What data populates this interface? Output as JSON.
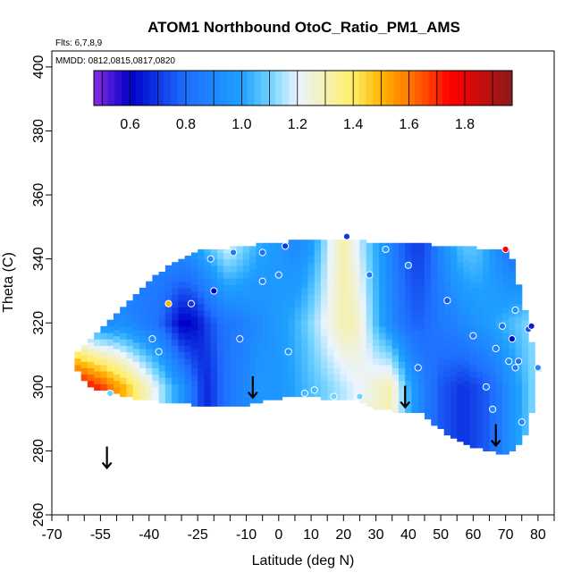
{
  "chart_data": {
    "type": "heatmap",
    "title": "ATOM1 Northbound OtoC_Ratio_PM1_AMS",
    "annotations": [
      "Flts: 6,7,8,9",
      "MMDD: 0812,0815,0817,0820"
    ],
    "xlabel": "Latitude (deg N)",
    "ylabel": "Theta (C)",
    "xlim": [
      -70,
      85
    ],
    "ylim": [
      260,
      405
    ],
    "x_ticks": [
      -70,
      -55,
      -40,
      -25,
      -10,
      0,
      10,
      20,
      30,
      40,
      50,
      60,
      70,
      80
    ],
    "x_tick_labels": [
      "-70",
      "-55",
      "-40",
      "-25",
      "-10",
      "0",
      "10",
      "20",
      "30",
      "40",
      "50",
      "60",
      "70",
      "80"
    ],
    "x_minor_ticks": [
      -65,
      -60,
      -50,
      -45,
      -35,
      -30,
      -20,
      -15,
      -5,
      5,
      15,
      25,
      35,
      45,
      55,
      65,
      75,
      85
    ],
    "y_ticks": [
      260,
      280,
      300,
      320,
      340,
      360,
      380,
      400
    ],
    "y_tick_labels": [
      "260",
      "280",
      "300",
      "320",
      "340",
      "360",
      "380",
      "400"
    ],
    "colorbar": {
      "range": [
        0.47,
        1.97
      ],
      "ticks": [
        0.6,
        0.8,
        1.0,
        1.2,
        1.4,
        1.6,
        1.8
      ],
      "tick_labels": [
        "0.6",
        "0.8",
        "1.0",
        "1.2",
        "1.4",
        "1.6",
        "1.8"
      ],
      "stops": [
        {
          "v": 0.47,
          "color": "#8a2be2"
        },
        {
          "v": 0.6,
          "color": "#0000c8"
        },
        {
          "v": 0.8,
          "color": "#1f6fff"
        },
        {
          "v": 1.0,
          "color": "#1ea0ff"
        },
        {
          "v": 1.1,
          "color": "#6fd2ff"
        },
        {
          "v": 1.2,
          "color": "#eaf4ff"
        },
        {
          "v": 1.4,
          "color": "#ffee66"
        },
        {
          "v": 1.5,
          "color": "#ffb400"
        },
        {
          "v": 1.6,
          "color": "#ff7800"
        },
        {
          "v": 1.75,
          "color": "#ff0000"
        },
        {
          "v": 1.97,
          "color": "#8b1a1a"
        }
      ]
    },
    "grid": false,
    "field": {
      "lat": [
        -64,
        -62,
        -60,
        -58,
        -56,
        -54,
        -52,
        -50,
        -48,
        -46,
        -44,
        -42,
        -40,
        -38,
        -36,
        -34,
        -32,
        -30,
        -28,
        -26,
        -24,
        -22,
        -20,
        -18,
        -16,
        -14,
        -12,
        -10,
        -8,
        -6,
        -4,
        -2,
        0,
        2,
        4,
        6,
        8,
        10,
        12,
        14,
        16,
        18,
        20,
        22,
        24,
        26,
        28,
        30,
        32,
        34,
        36,
        38,
        40,
        42,
        44,
        46,
        48,
        50,
        52,
        54,
        56,
        58,
        60,
        62,
        64,
        66,
        68,
        70,
        72,
        74,
        76,
        78,
        80
      ],
      "bottom": [
        309,
        305,
        302,
        300,
        299,
        299,
        299,
        298,
        297,
        297,
        296,
        296,
        296,
        296,
        295,
        295,
        295,
        295,
        295,
        294,
        294,
        294,
        294,
        294,
        294,
        294,
        294,
        294,
        295,
        295,
        296,
        296,
        296,
        297,
        297,
        297,
        297,
        297,
        297,
        296,
        296,
        296,
        296,
        296,
        296,
        295,
        294,
        293,
        293,
        293,
        292,
        292,
        292,
        292,
        292,
        290,
        288,
        287,
        285,
        284,
        283,
        282,
        281,
        281,
        280,
        280,
        279,
        279,
        280,
        282,
        285,
        292,
        305
      ],
      "top": [
        309,
        311,
        313,
        315,
        317,
        319,
        321,
        323,
        325,
        327,
        329,
        331,
        333,
        335,
        336,
        338,
        339,
        340,
        341,
        342,
        343,
        343,
        343,
        343,
        343,
        344,
        344,
        344,
        344,
        345,
        345,
        345,
        345,
        345,
        346,
        346,
        346,
        346,
        346,
        346,
        346,
        346,
        346,
        346,
        346,
        346,
        345,
        345,
        345,
        345,
        345,
        345,
        345,
        345,
        345,
        345,
        344,
        344,
        344,
        344,
        344,
        344,
        344,
        343,
        343,
        343,
        343,
        343,
        340,
        332,
        324,
        314,
        306
      ],
      "lat_step": 2,
      "theta_step": 2,
      "v": [
        [
          1.85,
          1.82,
          1.78,
          1.74,
          1.7,
          1.66,
          1.6,
          1.55,
          1.5,
          1.44,
          1.38,
          1.32,
          1.26,
          1.2,
          1.14,
          1.08,
          1.02,
          0.96,
          0.88,
          0.8,
          0.72,
          0.68,
          0.72,
          0.78,
          0.82,
          0.86,
          0.88,
          0.9,
          0.94,
          0.96,
          0.96,
          0.96,
          0.96,
          0.98,
          1.0,
          1.02,
          1.04,
          1.06,
          1.08,
          1.1,
          1.12,
          1.14,
          1.16,
          1.18,
          1.2,
          1.22,
          1.24,
          1.26,
          1.28,
          1.3,
          1.24,
          1.14,
          1.04,
          0.96,
          0.9,
          0.84,
          0.8,
          0.76,
          0.74,
          0.72,
          0.7,
          0.7,
          0.72,
          0.74,
          0.76,
          0.8,
          0.84,
          0.9,
          0.95,
          1.0,
          1.05,
          1.1,
          1.15
        ],
        [
          1.0,
          0.98,
          0.96,
          0.94,
          0.92,
          0.92,
          0.92,
          0.92,
          0.92,
          0.9,
          0.88,
          0.86,
          0.84,
          0.82,
          0.78,
          0.72,
          0.66,
          0.6,
          0.6,
          0.62,
          0.66,
          0.72,
          0.76,
          0.8,
          0.82,
          0.84,
          0.86,
          0.88,
          0.9,
          0.92,
          0.94,
          0.96,
          0.98,
          1.0,
          1.02,
          1.05,
          1.08,
          1.12,
          1.16,
          1.2,
          1.24,
          1.27,
          1.3,
          1.3,
          1.28,
          1.22,
          1.14,
          1.06,
          1.0,
          0.94,
          0.88,
          0.84,
          0.8,
          0.78,
          0.78,
          0.8,
          0.82,
          0.84,
          0.86,
          0.88,
          0.9,
          0.92,
          0.94,
          0.96,
          0.98,
          1.0,
          1.02,
          1.04,
          1.06,
          1.08,
          1.1,
          1.12,
          1.14
        ],
        [
          0.9,
          0.9,
          0.9,
          0.9,
          0.9,
          0.9,
          0.88,
          0.86,
          0.84,
          0.82,
          0.82,
          0.84,
          0.86,
          0.88,
          0.9,
          0.92,
          0.94,
          0.96,
          0.98,
          1.0,
          1.04,
          1.08,
          1.12,
          1.16,
          1.2,
          1.18,
          1.14,
          1.1,
          1.06,
          1.02,
          1.0,
          0.98,
          0.96,
          0.94,
          0.92,
          0.92,
          0.94,
          0.98,
          1.04,
          1.12,
          1.2,
          1.26,
          1.3,
          1.26,
          1.2,
          1.14,
          1.08,
          1.02,
          0.96,
          0.9,
          0.84,
          0.78,
          0.74,
          0.72,
          0.72,
          0.76,
          0.82,
          0.9,
          0.96,
          1.02,
          1.06,
          1.08,
          1.08,
          1.06,
          1.02,
          0.96,
          0.9,
          0.84,
          0.8,
          0.78,
          0.82,
          0.9,
          1.0
        ]
      ],
      "v_theta": [
        300,
        320,
        345
      ]
    },
    "points": [
      {
        "lat": -52,
        "theta": 298,
        "v": 1.1
      },
      {
        "lat": -39,
        "theta": 315,
        "v": 0.9
      },
      {
        "lat": -37,
        "theta": 311,
        "v": 0.95
      },
      {
        "lat": -34,
        "theta": 326,
        "v": 1.5
      },
      {
        "lat": -27,
        "theta": 326,
        "v": 0.7
      },
      {
        "lat": -21,
        "theta": 340,
        "v": 0.9
      },
      {
        "lat": -20,
        "theta": 330,
        "v": 0.6
      },
      {
        "lat": -14,
        "theta": 342,
        "v": 0.85
      },
      {
        "lat": -12,
        "theta": 315,
        "v": 0.8
      },
      {
        "lat": -5,
        "theta": 333,
        "v": 0.85
      },
      {
        "lat": -5,
        "theta": 342,
        "v": 0.8
      },
      {
        "lat": 0,
        "theta": 335,
        "v": 0.9
      },
      {
        "lat": 2,
        "theta": 344,
        "v": 0.7
      },
      {
        "lat": 3,
        "theta": 311,
        "v": 0.95
      },
      {
        "lat": 8,
        "theta": 298,
        "v": 1.05
      },
      {
        "lat": 11,
        "theta": 299,
        "v": 1.05
      },
      {
        "lat": 17,
        "theta": 297,
        "v": 1.1
      },
      {
        "lat": 21,
        "theta": 347,
        "v": 0.7
      },
      {
        "lat": 25,
        "theta": 297,
        "v": 1.1
      },
      {
        "lat": 28,
        "theta": 335,
        "v": 0.85
      },
      {
        "lat": 33,
        "theta": 343,
        "v": 1.0
      },
      {
        "lat": 40,
        "theta": 338,
        "v": 0.9
      },
      {
        "lat": 43,
        "theta": 306,
        "v": 0.8
      },
      {
        "lat": 52,
        "theta": 327,
        "v": 0.75
      },
      {
        "lat": 60,
        "theta": 316,
        "v": 0.85
      },
      {
        "lat": 64,
        "theta": 300,
        "v": 0.8
      },
      {
        "lat": 66,
        "theta": 293,
        "v": 0.9
      },
      {
        "lat": 67,
        "theta": 312,
        "v": 0.85
      },
      {
        "lat": 69,
        "theta": 319,
        "v": 0.8
      },
      {
        "lat": 70,
        "theta": 343,
        "v": 1.75
      },
      {
        "lat": 71,
        "theta": 308,
        "v": 0.9
      },
      {
        "lat": 72,
        "theta": 315,
        "v": 0.6
      },
      {
        "lat": 73,
        "theta": 306,
        "v": 0.85
      },
      {
        "lat": 73,
        "theta": 324,
        "v": 0.95
      },
      {
        "lat": 74,
        "theta": 308,
        "v": 0.8
      },
      {
        "lat": 75,
        "theta": 289,
        "v": 0.9
      },
      {
        "lat": 77,
        "theta": 318,
        "v": 0.75
      },
      {
        "lat": 78,
        "theta": 319,
        "v": 0.65
      },
      {
        "lat": 80,
        "theta": 306,
        "v": 0.9
      }
    ],
    "arrows": [
      {
        "lat": -53,
        "theta": 278
      },
      {
        "lat": -8,
        "theta": 300
      },
      {
        "lat": 39,
        "theta": 297
      },
      {
        "lat": 67,
        "theta": 285
      }
    ]
  }
}
